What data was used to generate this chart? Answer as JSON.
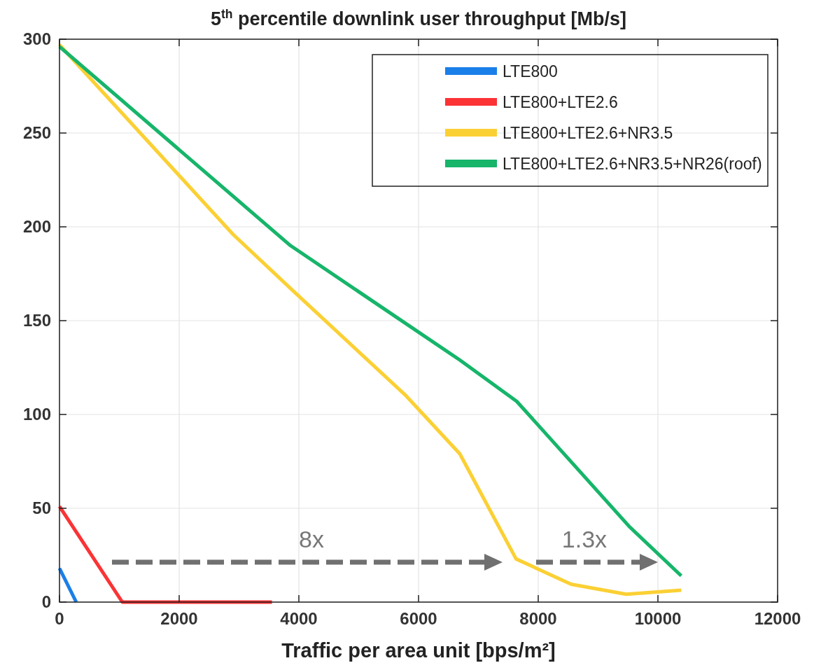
{
  "chart_data": {
    "type": "line",
    "title": "5$^{th}$ percentile downlink user throughput [Mb/s]",
    "xlabel": "Traffic per area unit [bps/m²]",
    "xlim": [
      0,
      12000
    ],
    "xticks": [
      0,
      2000,
      4000,
      6000,
      8000,
      10000,
      12000
    ],
    "ylim": [
      0,
      300
    ],
    "yticks": [
      0,
      50,
      100,
      150,
      200,
      250,
      300
    ],
    "grid": true,
    "legend": "top right",
    "line_style": "solid",
    "marker": "none",
    "series": [
      {
        "name": "LTE800",
        "color": "#1a7fe8",
        "x": [
          0,
          280
        ],
        "values": [
          18,
          0
        ]
      },
      {
        "name": "LTE800+LTE2.6",
        "color": "#fb3335",
        "x": [
          0,
          1050,
          3550
        ],
        "values": [
          51,
          0,
          0
        ]
      },
      {
        "name": "LTE800+LTE2.6+NR3.5",
        "color": "#fbd034",
        "x": [
          0,
          2900,
          3900,
          5790,
          6690,
          7630,
          8550,
          9470,
          10390
        ],
        "values": [
          297,
          196,
          166,
          110,
          79,
          23,
          9.5,
          4.2,
          6.3
        ]
      },
      {
        "name": "LTE800+LTE2.6+NR3.5+NR26(roof)",
        "color": "#16b56a",
        "x": [
          0,
          3860,
          6690,
          7640,
          8600,
          9530,
          10390
        ],
        "values": [
          296,
          190,
          129,
          107,
          73,
          40,
          14
        ]
      }
    ],
    "annotations": [
      "8x",
      "1.3x"
    ]
  }
}
